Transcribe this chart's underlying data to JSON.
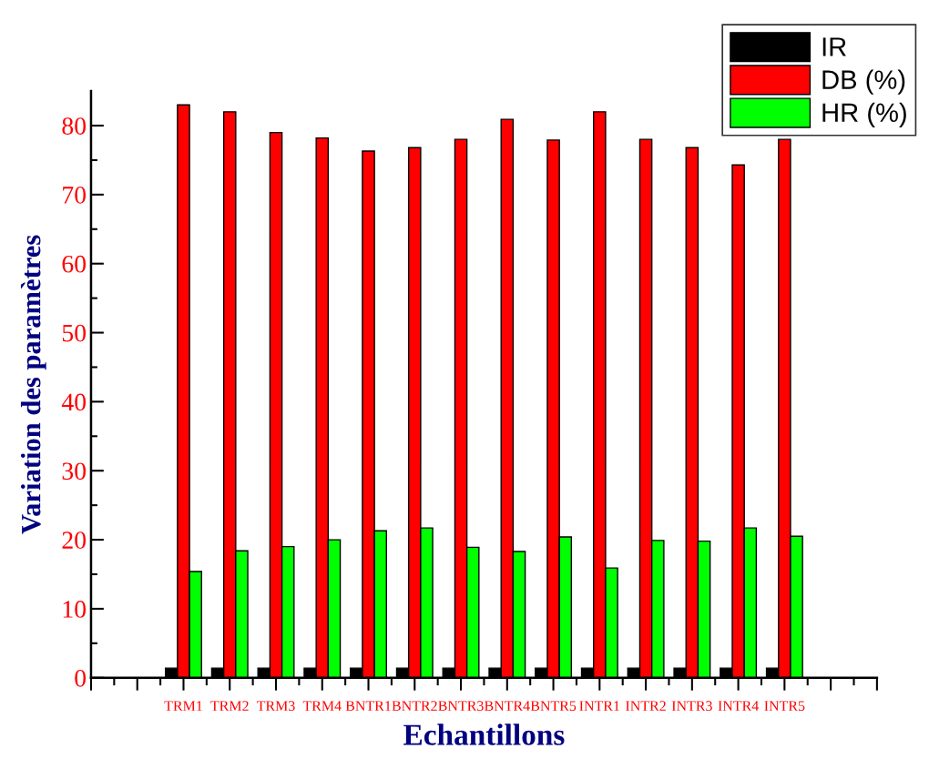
{
  "chart_data": {
    "type": "bar",
    "xlabel": "Echantillons",
    "ylabel": "Variation des paramètres",
    "categories": [
      null,
      null,
      "TRM1",
      "TRM2",
      "TRM3",
      "TRM4",
      "BNTR1",
      "BNTR2",
      "BNTR3",
      "BNTR4",
      "BNTR5",
      "INTR1",
      "INTR2",
      "INTR3",
      "INTR4",
      "INTR5",
      null,
      null
    ],
    "series": [
      {
        "name": "IR",
        "color": "#000000",
        "values": [
          null,
          null,
          1.4,
          1.4,
          1.4,
          1.4,
          1.4,
          1.4,
          1.4,
          1.4,
          1.4,
          1.4,
          1.4,
          1.4,
          1.4,
          1.4,
          null,
          null
        ]
      },
      {
        "name": "DB (%)",
        "color": "#ff0000",
        "values": [
          null,
          null,
          83.0,
          82.0,
          79.0,
          78.2,
          76.3,
          76.8,
          78.0,
          80.9,
          77.9,
          82.0,
          78.0,
          76.8,
          74.3,
          78.0,
          null,
          null
        ]
      },
      {
        "name": "HR (%)",
        "color": "#00ff00",
        "values": [
          null,
          null,
          15.4,
          18.4,
          19.0,
          20.0,
          21.3,
          21.7,
          18.9,
          18.3,
          20.4,
          15.9,
          19.9,
          19.8,
          21.7,
          20.5,
          null,
          null
        ]
      }
    ],
    "ylim": [
      0,
      85
    ],
    "yticks": [
      0,
      10,
      20,
      30,
      40,
      50,
      60,
      70,
      80
    ],
    "grid": false,
    "legend": "top right"
  }
}
